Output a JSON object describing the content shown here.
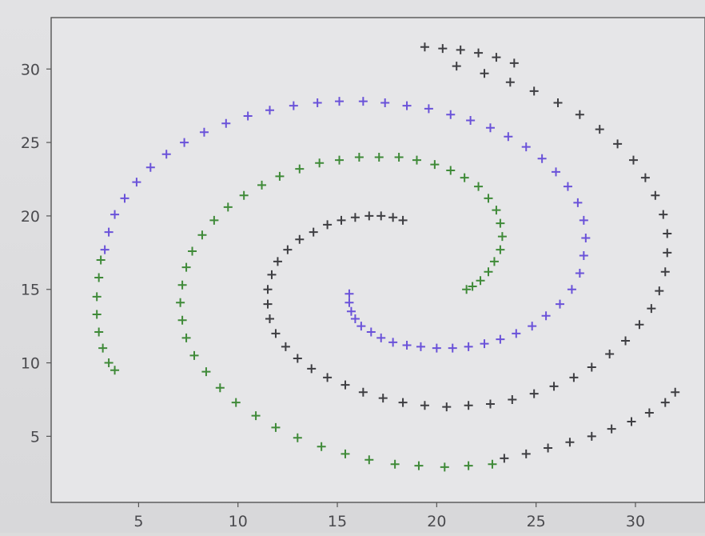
{
  "chart_data": {
    "type": "scatter",
    "title": "",
    "xlabel": "",
    "ylabel": "",
    "xlim": [
      0.6,
      33.5
    ],
    "ylim": [
      0.5,
      33.5
    ],
    "grid": false,
    "marker": "+",
    "xticks": [
      5,
      10,
      15,
      20,
      25,
      30
    ],
    "yticks": [
      5,
      10,
      15,
      20,
      25,
      30
    ],
    "xtick_labels": [
      "5",
      "10",
      "15",
      "20",
      "25",
      "30"
    ],
    "ytick_labels": [
      "5",
      "10",
      "15",
      "20",
      "25",
      "30"
    ],
    "series": [
      {
        "color": "#6a52d9",
        "points": [
          [
            15.6,
            14.7
          ],
          [
            15.6,
            14.1
          ],
          [
            15.7,
            13.5
          ],
          [
            15.9,
            13.0
          ],
          [
            16.2,
            12.5
          ],
          [
            16.7,
            12.1
          ],
          [
            17.2,
            11.7
          ],
          [
            17.8,
            11.4
          ],
          [
            18.5,
            11.2
          ],
          [
            19.2,
            11.1
          ],
          [
            20.0,
            11.0
          ],
          [
            20.8,
            11.0
          ],
          [
            21.6,
            11.1
          ],
          [
            22.4,
            11.3
          ],
          [
            23.2,
            11.6
          ],
          [
            24.0,
            12.0
          ],
          [
            24.8,
            12.5
          ],
          [
            25.5,
            13.2
          ],
          [
            26.2,
            14.0
          ],
          [
            26.8,
            15.0
          ],
          [
            27.2,
            16.1
          ],
          [
            27.4,
            17.3
          ],
          [
            27.5,
            18.5
          ],
          [
            27.4,
            19.7
          ],
          [
            27.1,
            20.9
          ],
          [
            26.6,
            22.0
          ],
          [
            26.0,
            23.0
          ],
          [
            25.3,
            23.9
          ],
          [
            24.5,
            24.7
          ],
          [
            23.6,
            25.4
          ],
          [
            22.7,
            26.0
          ],
          [
            21.7,
            26.5
          ],
          [
            20.7,
            26.9
          ],
          [
            19.6,
            27.3
          ],
          [
            18.5,
            27.5
          ],
          [
            17.4,
            27.7
          ],
          [
            16.3,
            27.8
          ],
          [
            15.1,
            27.8
          ],
          [
            14.0,
            27.7
          ],
          [
            12.8,
            27.5
          ],
          [
            11.6,
            27.2
          ],
          [
            10.5,
            26.8
          ],
          [
            9.4,
            26.3
          ],
          [
            8.3,
            25.7
          ],
          [
            7.3,
            25.0
          ],
          [
            6.4,
            24.2
          ],
          [
            5.6,
            23.3
          ],
          [
            4.9,
            22.3
          ],
          [
            4.3,
            21.2
          ],
          [
            3.8,
            20.1
          ],
          [
            3.5,
            18.9
          ],
          [
            3.3,
            17.7
          ]
        ]
      },
      {
        "color": "#3f8a38",
        "points": [
          [
            21.5,
            15.0
          ],
          [
            21.8,
            15.2
          ],
          [
            22.2,
            15.6
          ],
          [
            22.6,
            16.2
          ],
          [
            22.9,
            16.9
          ],
          [
            23.2,
            17.7
          ],
          [
            23.3,
            18.6
          ],
          [
            23.2,
            19.5
          ],
          [
            23.0,
            20.4
          ],
          [
            22.6,
            21.2
          ],
          [
            22.1,
            22.0
          ],
          [
            21.4,
            22.6
          ],
          [
            20.7,
            23.1
          ],
          [
            19.9,
            23.5
          ],
          [
            19.0,
            23.8
          ],
          [
            18.1,
            24.0
          ],
          [
            17.1,
            24.0
          ],
          [
            16.1,
            24.0
          ],
          [
            15.1,
            23.8
          ],
          [
            14.1,
            23.6
          ],
          [
            13.1,
            23.2
          ],
          [
            12.1,
            22.7
          ],
          [
            11.2,
            22.1
          ],
          [
            10.3,
            21.4
          ],
          [
            9.5,
            20.6
          ],
          [
            8.8,
            19.7
          ],
          [
            8.2,
            18.7
          ],
          [
            7.7,
            17.6
          ],
          [
            7.4,
            16.5
          ],
          [
            7.2,
            15.3
          ],
          [
            7.1,
            14.1
          ],
          [
            7.2,
            12.9
          ],
          [
            7.4,
            11.7
          ],
          [
            7.8,
            10.5
          ],
          [
            8.4,
            9.4
          ],
          [
            9.1,
            8.3
          ],
          [
            9.9,
            7.3
          ],
          [
            10.9,
            6.4
          ],
          [
            11.9,
            5.6
          ],
          [
            13.0,
            4.9
          ],
          [
            14.2,
            4.3
          ],
          [
            15.4,
            3.8
          ],
          [
            16.6,
            3.4
          ],
          [
            17.9,
            3.1
          ],
          [
            19.1,
            3.0
          ],
          [
            20.4,
            2.9
          ],
          [
            21.6,
            3.0
          ],
          [
            22.8,
            3.1
          ],
          [
            3.0,
            15.8
          ],
          [
            2.9,
            14.5
          ],
          [
            2.9,
            13.3
          ],
          [
            3.0,
            12.1
          ],
          [
            3.2,
            11.0
          ],
          [
            3.5,
            10.0
          ],
          [
            3.8,
            9.5
          ],
          [
            3.1,
            17.0
          ]
        ]
      },
      {
        "color": "#3e3e42",
        "points": [
          [
            18.3,
            19.7
          ],
          [
            17.8,
            19.9
          ],
          [
            17.2,
            20.0
          ],
          [
            16.6,
            20.0
          ],
          [
            15.9,
            19.9
          ],
          [
            15.2,
            19.7
          ],
          [
            14.5,
            19.4
          ],
          [
            13.8,
            18.9
          ],
          [
            13.1,
            18.4
          ],
          [
            12.5,
            17.7
          ],
          [
            12.0,
            16.9
          ],
          [
            11.7,
            16.0
          ],
          [
            11.5,
            15.0
          ],
          [
            11.5,
            14.0
          ],
          [
            11.6,
            13.0
          ],
          [
            11.9,
            12.0
          ],
          [
            12.4,
            11.1
          ],
          [
            13.0,
            10.3
          ],
          [
            13.7,
            9.6
          ],
          [
            14.5,
            9.0
          ],
          [
            15.4,
            8.5
          ],
          [
            16.3,
            8.0
          ],
          [
            17.3,
            7.6
          ],
          [
            18.3,
            7.3
          ],
          [
            19.4,
            7.1
          ],
          [
            20.5,
            7.0
          ],
          [
            21.6,
            7.1
          ],
          [
            22.7,
            7.2
          ],
          [
            23.8,
            7.5
          ],
          [
            24.9,
            7.9
          ],
          [
            25.9,
            8.4
          ],
          [
            26.9,
            9.0
          ],
          [
            27.8,
            9.7
          ],
          [
            28.7,
            10.6
          ],
          [
            29.5,
            11.5
          ],
          [
            30.2,
            12.6
          ],
          [
            30.8,
            13.7
          ],
          [
            31.2,
            14.9
          ],
          [
            31.5,
            16.2
          ],
          [
            31.6,
            17.5
          ],
          [
            31.6,
            18.8
          ],
          [
            31.4,
            20.1
          ],
          [
            31.0,
            21.4
          ],
          [
            30.5,
            22.6
          ],
          [
            29.9,
            23.8
          ],
          [
            29.1,
            24.9
          ],
          [
            28.2,
            25.9
          ],
          [
            27.2,
            26.9
          ],
          [
            26.1,
            27.7
          ],
          [
            24.9,
            28.5
          ],
          [
            23.7,
            29.1
          ],
          [
            22.4,
            29.7
          ],
          [
            21.0,
            30.2
          ],
          [
            19.4,
            31.5
          ],
          [
            20.3,
            31.4
          ],
          [
            21.2,
            31.3
          ],
          [
            22.1,
            31.1
          ],
          [
            23.0,
            30.8
          ],
          [
            23.9,
            30.4
          ],
          [
            31.5,
            7.3
          ],
          [
            30.7,
            6.6
          ],
          [
            29.8,
            6.0
          ],
          [
            28.8,
            5.5
          ],
          [
            27.8,
            5.0
          ],
          [
            26.7,
            4.6
          ],
          [
            25.6,
            4.2
          ],
          [
            24.5,
            3.8
          ],
          [
            23.4,
            3.5
          ],
          [
            32.0,
            8.0
          ]
        ]
      }
    ]
  }
}
